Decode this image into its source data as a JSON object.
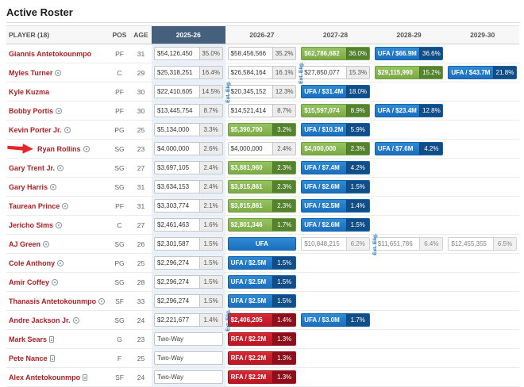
{
  "page": {
    "title": "Active Roster"
  },
  "annotation": {
    "type": "arrow",
    "color": "#e8252a",
    "points_to": "Ryan Rollins"
  },
  "colors": {
    "highlight_column_bg": "#e9f2fa",
    "active_season_header_bg": "#44607c",
    "player_link": "#b01f24",
    "option_green_box": "#7cab45",
    "ufa_blue_box": "#1a6fbe",
    "nonguaranteed_red_box": "#bb1622",
    "ext_elig_text": "#1a6fbe",
    "annotation_arrow": "#e8252a"
  },
  "table": {
    "columns": {
      "player": "PLAYER (18)",
      "pos": "POS",
      "age": "AGE",
      "seasons": [
        "2025-26",
        "2026-27",
        "2027-28",
        "2028-29",
        "2029-30"
      ]
    },
    "active_season": "2025-26",
    "ext_elig_label": "Ext. Elig.",
    "rows": [
      {
        "name": "Giannis Antetokounmpo",
        "icon": null,
        "pos": "PF",
        "age": 31,
        "cells": [
          {
            "type": "normal",
            "value": "$54,126,450",
            "pct": "35.0%"
          },
          {
            "type": "normal",
            "value": "$58,456,566",
            "pct": "35.2%"
          },
          {
            "type": "green",
            "value": "$62,786,682",
            "pct": "36.0%"
          },
          {
            "type": "blue",
            "value": "UFA / $66.9M",
            "pct": "36.6%"
          },
          null
        ]
      },
      {
        "name": "Myles Turner",
        "icon": "badge",
        "pos": "C",
        "age": 29,
        "ext_elig_before_index": 2,
        "cells": [
          {
            "type": "normal",
            "value": "$25,318,251",
            "pct": "16.4%"
          },
          {
            "type": "normal",
            "value": "$26,584,164",
            "pct": "16.1%"
          },
          {
            "type": "normal",
            "value": "$27,850,077",
            "pct": "15.3%"
          },
          {
            "type": "green",
            "value": "$29,115,990",
            "pct": "15.2%"
          },
          {
            "type": "blue",
            "value": "UFA / $43.7M",
            "pct": "21.8%"
          }
        ]
      },
      {
        "name": "Kyle Kuzma",
        "icon": null,
        "pos": "PF",
        "age": 30,
        "ext_elig_before_index": 1,
        "cells": [
          {
            "type": "normal",
            "value": "$22,410,605",
            "pct": "14.5%"
          },
          {
            "type": "normal",
            "value": "$20,345,152",
            "pct": "12.3%"
          },
          {
            "type": "blue",
            "value": "UFA / $31.4M",
            "pct": "18.0%"
          },
          null,
          null
        ]
      },
      {
        "name": "Bobby Portis",
        "icon": "badge",
        "pos": "PF",
        "age": 30,
        "cells": [
          {
            "type": "normal",
            "value": "$13,445,754",
            "pct": "8.7%"
          },
          {
            "type": "normal",
            "value": "$14,521,414",
            "pct": "8.7%"
          },
          {
            "type": "green",
            "value": "$15,597,074",
            "pct": "8.9%"
          },
          {
            "type": "blue",
            "value": "UFA / $23.4M",
            "pct": "12.8%"
          },
          null
        ]
      },
      {
        "name": "Kevin Porter Jr.",
        "icon": "badge",
        "pos": "PG",
        "age": 25,
        "cells": [
          {
            "type": "normal",
            "value": "$5,134,000",
            "pct": "3.3%"
          },
          {
            "type": "green",
            "value": "$5,390,700",
            "pct": "3.2%"
          },
          {
            "type": "blue",
            "value": "UFA / $10.2M",
            "pct": "5.9%"
          },
          null,
          null
        ]
      },
      {
        "name": "Ryan Rollins",
        "icon": "badge",
        "pos": "SG",
        "age": 23,
        "annotated": true,
        "cells": [
          {
            "type": "normal",
            "value": "$4,000,000",
            "pct": "2.6%"
          },
          {
            "type": "normal",
            "value": "$4,000,000",
            "pct": "2.4%"
          },
          {
            "type": "green",
            "value": "$4,000,000",
            "pct": "2.3%"
          },
          {
            "type": "blue",
            "value": "UFA / $7.6M",
            "pct": "4.2%"
          },
          null
        ]
      },
      {
        "name": "Gary Trent Jr.",
        "icon": "badge",
        "pos": "SG",
        "age": 27,
        "cells": [
          {
            "type": "normal",
            "value": "$3,697,105",
            "pct": "2.4%"
          },
          {
            "type": "green",
            "value": "$3,881,960",
            "pct": "2.3%"
          },
          {
            "type": "blue",
            "value": "UFA / $7.4M",
            "pct": "4.2%"
          },
          null,
          null
        ]
      },
      {
        "name": "Gary Harris",
        "icon": "badge",
        "pos": "SG",
        "age": 31,
        "cells": [
          {
            "type": "normal",
            "value": "$3,634,153",
            "pct": "2.4%"
          },
          {
            "type": "green",
            "value": "$3,815,861",
            "pct": "2.3%"
          },
          {
            "type": "blue",
            "value": "UFA / $2.6M",
            "pct": "1.5%"
          },
          null,
          null
        ]
      },
      {
        "name": "Taurean Prince",
        "icon": "badge",
        "pos": "PF",
        "age": 31,
        "cells": [
          {
            "type": "normal",
            "value": "$3,303,774",
            "pct": "2.1%"
          },
          {
            "type": "green",
            "value": "$3,815,861",
            "pct": "2.3%"
          },
          {
            "type": "blue",
            "value": "UFA / $2.5M",
            "pct": "1.4%"
          },
          null,
          null
        ]
      },
      {
        "name": "Jericho Sims",
        "icon": "badge",
        "pos": "C",
        "age": 27,
        "cells": [
          {
            "type": "normal",
            "value": "$2,461,463",
            "pct": "1.6%"
          },
          {
            "type": "green",
            "value": "$2,801,346",
            "pct": "1.7%"
          },
          {
            "type": "blue",
            "value": "UFA / $2.6M",
            "pct": "1.5%"
          },
          null,
          null
        ]
      },
      {
        "name": "AJ Green",
        "icon": "badge",
        "pos": "SG",
        "age": 26,
        "ext_elig_before_index": 3,
        "cells": [
          {
            "type": "normal",
            "value": "$2,301,587",
            "pct": "1.5%"
          },
          {
            "type": "ufa",
            "value": "UFA"
          },
          {
            "type": "projected",
            "value": "$10,848,215",
            "pct": "6.2%"
          },
          {
            "type": "projected",
            "value": "$11,651,786",
            "pct": "6.4%"
          },
          {
            "type": "projected",
            "value": "$12,455,355",
            "pct": "6.5%"
          }
        ]
      },
      {
        "name": "Cole Anthony",
        "icon": "badge",
        "pos": "PG",
        "age": 25,
        "cells": [
          {
            "type": "normal",
            "value": "$2,296,274",
            "pct": "1.5%"
          },
          {
            "type": "blue",
            "value": "UFA / $2.5M",
            "pct": "1.5%"
          },
          null,
          null,
          null
        ]
      },
      {
        "name": "Amir Coffey",
        "icon": "badge",
        "pos": "SG",
        "age": 28,
        "cells": [
          {
            "type": "normal",
            "value": "$2,296,274",
            "pct": "1.5%"
          },
          {
            "type": "blue",
            "value": "UFA / $2.5M",
            "pct": "1.5%"
          },
          null,
          null,
          null
        ]
      },
      {
        "name": "Thanasis Antetokounmpo",
        "icon": "badge",
        "pos": "SF",
        "age": 33,
        "cells": [
          {
            "type": "normal",
            "value": "$2,296,274",
            "pct": "1.5%"
          },
          {
            "type": "blue",
            "value": "UFA / $2.5M",
            "pct": "1.5%"
          },
          null,
          null,
          null
        ]
      },
      {
        "name": "Andre Jackson Jr.",
        "icon": "badge",
        "pos": "SG",
        "age": 24,
        "ext_elig_before_index": 1,
        "cells": [
          {
            "type": "normal",
            "value": "$2,221,677",
            "pct": "1.4%"
          },
          {
            "type": "red",
            "value": "$2,406,205",
            "pct": "1.4%"
          },
          {
            "type": "blue",
            "value": "UFA / $3.0M",
            "pct": "1.7%"
          },
          null,
          null
        ]
      },
      {
        "name": "Mark Sears",
        "icon": "doc",
        "pos": "G",
        "age": 23,
        "cells": [
          {
            "type": "twoway",
            "value": "Two-Way"
          },
          {
            "type": "red",
            "value": "RFA / $2.2M",
            "pct": "1.3%"
          },
          null,
          null,
          null
        ]
      },
      {
        "name": "Pete Nance",
        "icon": "doc",
        "pos": "F",
        "age": 25,
        "cells": [
          {
            "type": "twoway",
            "value": "Two-Way"
          },
          {
            "type": "red",
            "value": "RFA / $2.2M",
            "pct": "1.3%"
          },
          null,
          null,
          null
        ]
      },
      {
        "name": "Alex Antetokounmpo",
        "icon": "doc",
        "pos": "SF",
        "age": 24,
        "cells": [
          {
            "type": "twoway",
            "value": "Two-Way"
          },
          {
            "type": "red",
            "value": "RFA / $2.2M",
            "pct": "1.3%"
          },
          null,
          null,
          null
        ]
      }
    ]
  }
}
